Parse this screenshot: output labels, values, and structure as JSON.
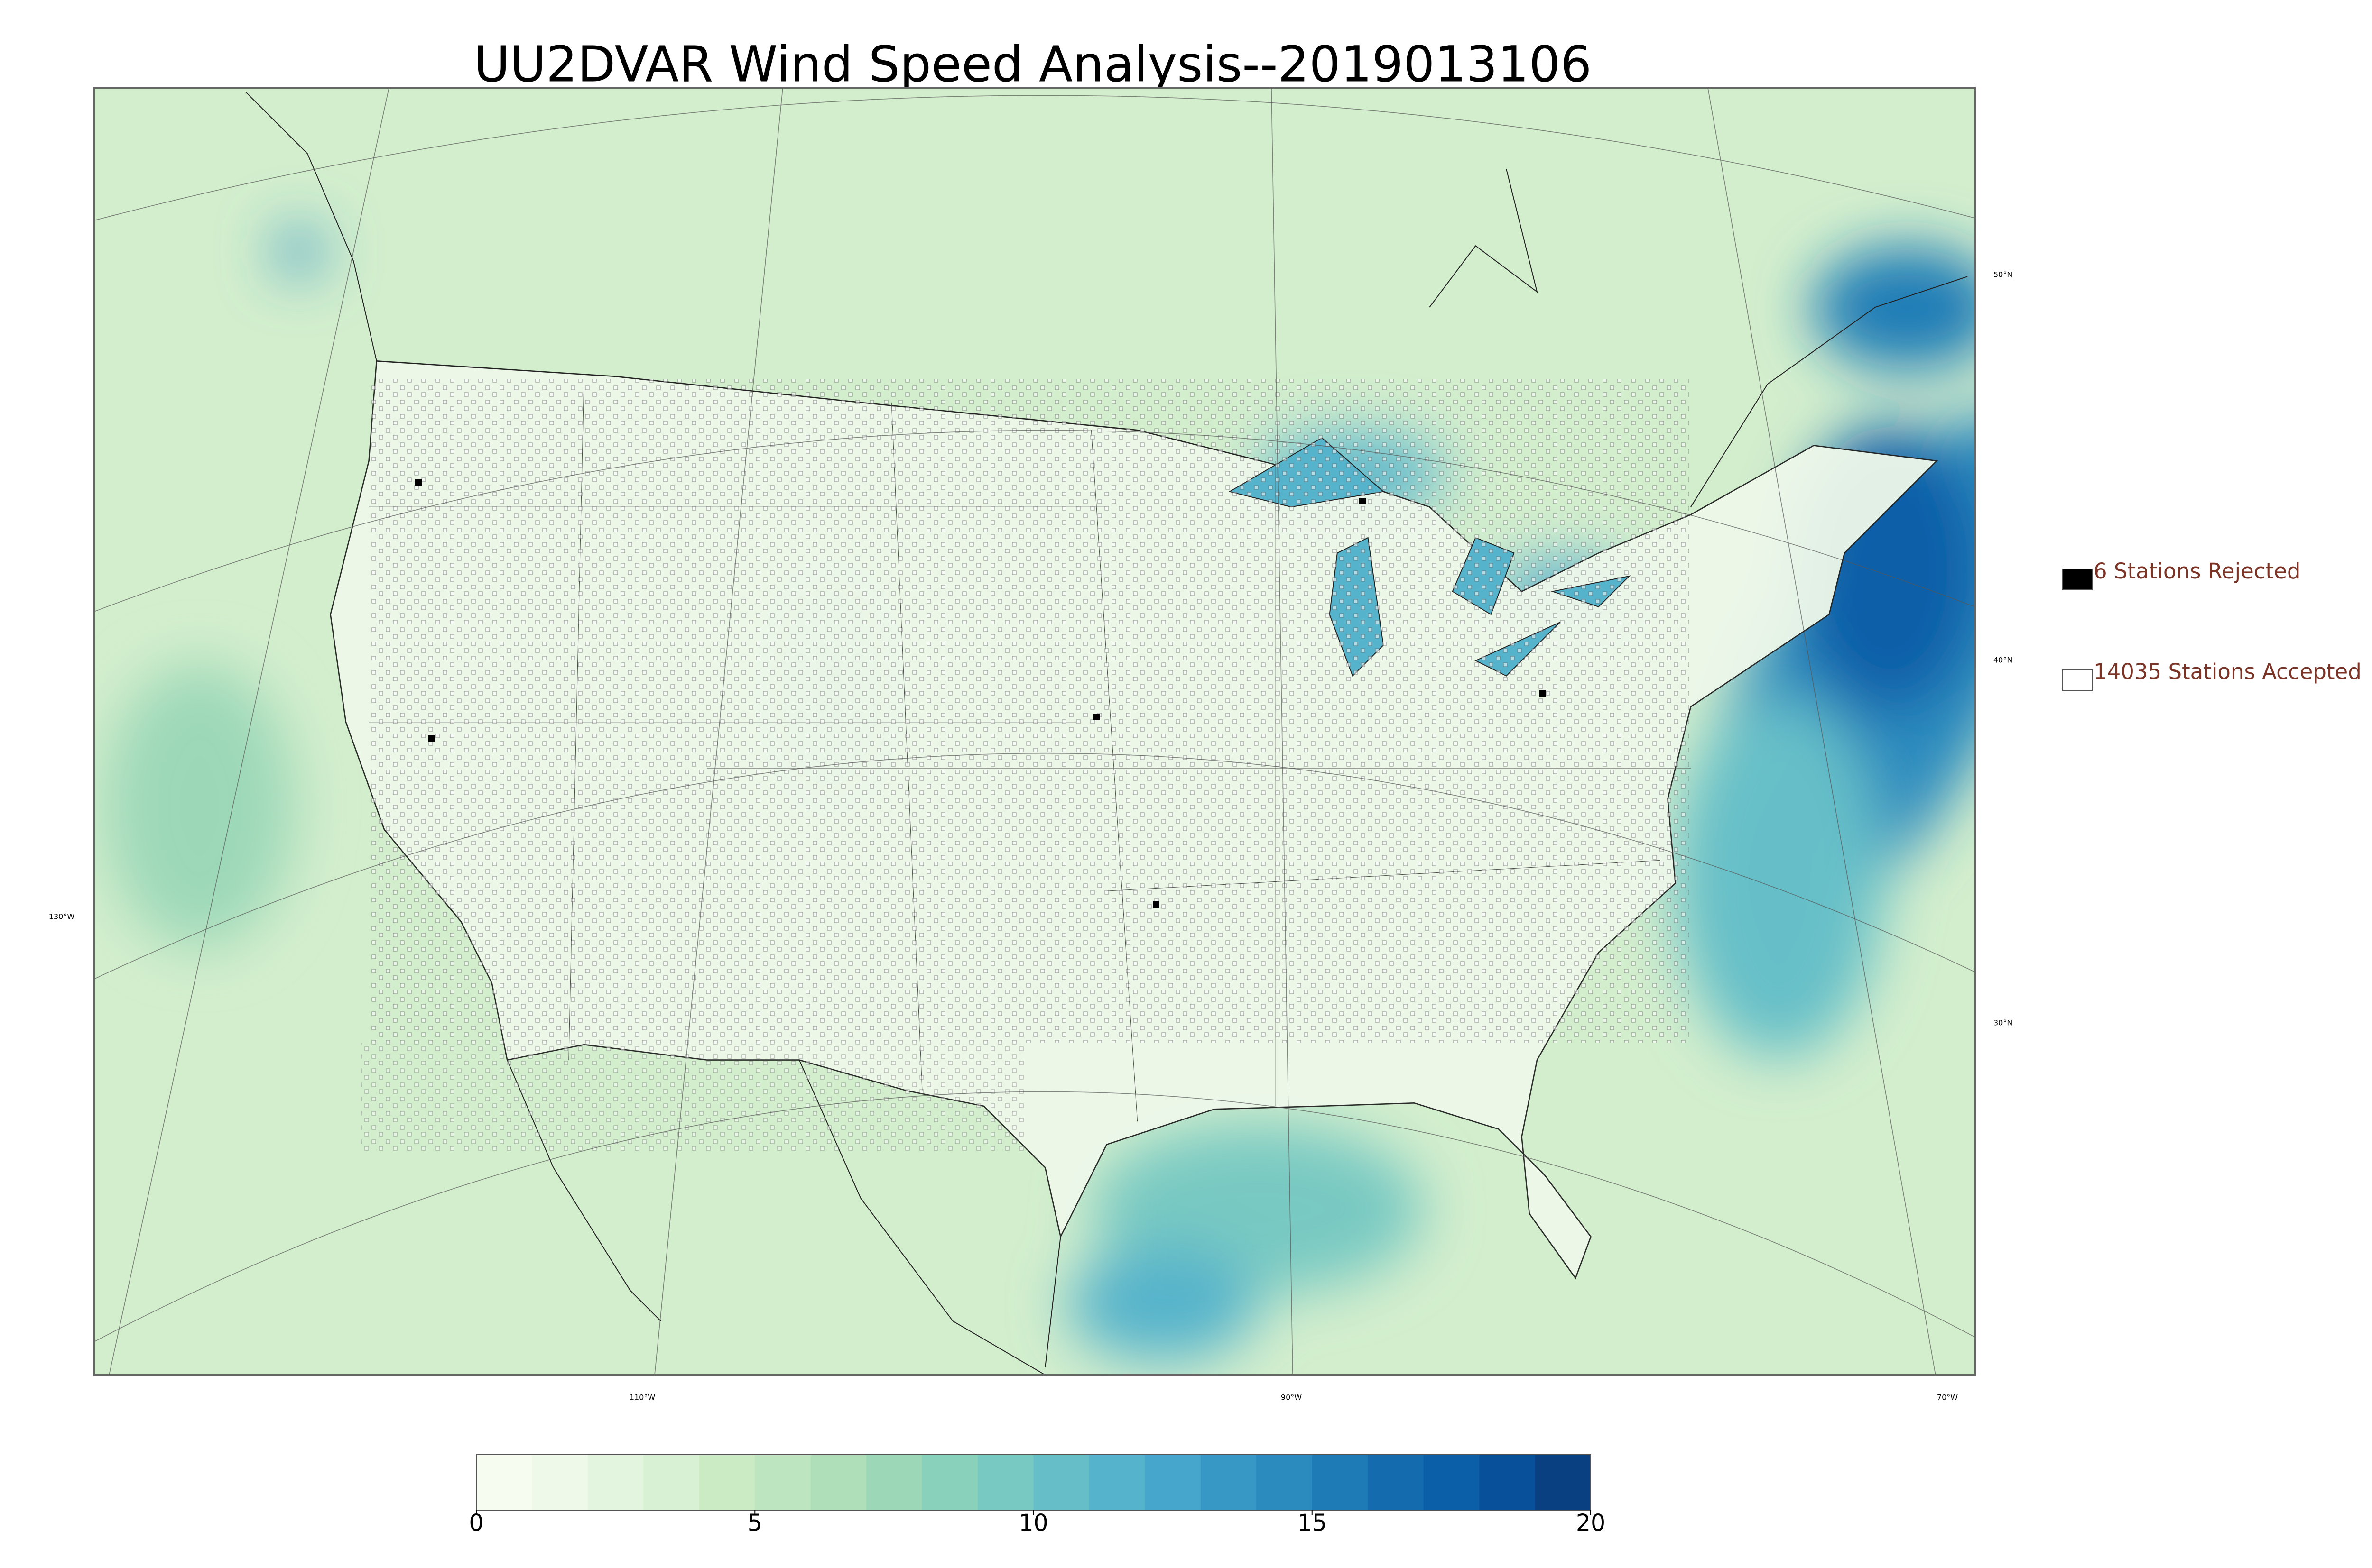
{
  "title": "UU2DVAR Wind Speed Analysis--2019013106",
  "legend": [
    {
      "label": "6 Stations Rejected",
      "color": "#000000"
    },
    {
      "label": "14035 Stations Accepted",
      "color": "#ffffff"
    }
  ],
  "colorbar": {
    "lim": [
      0,
      20
    ],
    "ticks": [
      0,
      5,
      10,
      15,
      20
    ],
    "colors": [
      "#f7fcf0",
      "#eef9ea",
      "#e4f5df",
      "#d8f0d3",
      "#cbebc5",
      "#bde5bf",
      "#aedfb9",
      "#9cd8b8",
      "#8ad1bb",
      "#78c9c2",
      "#66bfc8",
      "#55b3cb",
      "#46a6cb",
      "#3898c5",
      "#2b8abe",
      "#1f7bb6",
      "#146caf",
      "#0b5ea8",
      "#08509a",
      "#084081"
    ]
  },
  "graticule": {
    "lat_labels": [
      "50°N",
      "40°N",
      "30°N"
    ],
    "lon_labels": [
      "130°W",
      "110°W",
      "90°W",
      "70°W"
    ]
  }
}
